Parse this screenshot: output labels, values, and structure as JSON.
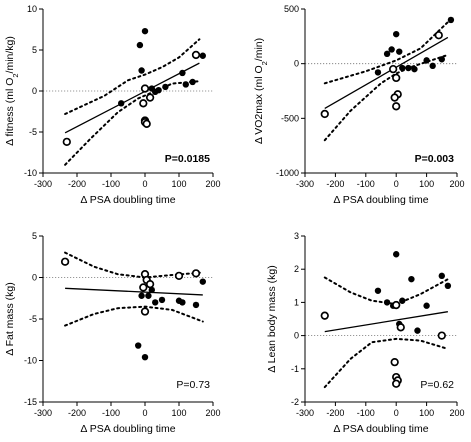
{
  "chart_data": [
    {
      "id": "fitness",
      "type": "scatter",
      "xlabel": "Δ PSA doubling time",
      "ylabel": "Δ fitness (ml O₂/min/kg)",
      "ylabel_parts": [
        "Δ fitness (ml O",
        "2",
        "/min/kg)"
      ],
      "xlim": [
        -300,
        200
      ],
      "ylim": [
        -10,
        10
      ],
      "xticks": [
        "-300",
        "-200",
        "-100",
        "0",
        "100",
        "200"
      ],
      "yticks": [
        "-10",
        "-5",
        "0",
        "5",
        "10"
      ],
      "annotation": "P=0.0185",
      "annotation_bold": true,
      "regression": [
        [
          -235,
          -5.1
        ],
        [
          160,
          3.4
        ]
      ],
      "ci_upper": [
        [
          -235,
          -2.8
        ],
        [
          -120,
          -0.6
        ],
        [
          -50,
          1.3
        ],
        [
          0,
          2.0
        ],
        [
          50,
          2.9
        ],
        [
          100,
          4.1
        ],
        [
          160,
          6.3
        ]
      ],
      "ci_lower": [
        [
          -235,
          -9.0
        ],
        [
          -160,
          -5.8
        ],
        [
          -80,
          -2.6
        ],
        [
          -20,
          -0.9
        ],
        [
          20,
          -0.2
        ],
        [
          80,
          0.9
        ],
        [
          160,
          1.2
        ]
      ],
      "points_filled": [
        [
          -15,
          5.6
        ],
        [
          0,
          7.3
        ],
        [
          -70,
          -1.5
        ],
        [
          -10,
          2.5
        ],
        [
          20,
          0.3
        ],
        [
          30,
          -0.1
        ],
        [
          40,
          0.1
        ],
        [
          60,
          0.5
        ],
        [
          110,
          2.2
        ],
        [
          120,
          0.8
        ],
        [
          140,
          1.1
        ],
        [
          150,
          4.4
        ],
        [
          170,
          4.3
        ]
      ],
      "points_open": [
        [
          -230,
          -6.2
        ],
        [
          0,
          0.3
        ],
        [
          -5,
          -1.5
        ],
        [
          0,
          -3.6
        ],
        [
          0,
          -3.8
        ],
        [
          5,
          -4.0
        ],
        [
          15,
          -0.8
        ],
        [
          150,
          4.4
        ]
      ]
    },
    {
      "id": "vo2max",
      "type": "scatter",
      "xlabel": "Δ PSA doubling time",
      "ylabel": "Δ VO2max (ml O₂/min)",
      "ylabel_parts": [
        "Δ VO2max (ml O",
        "2",
        "/min)"
      ],
      "xlim": [
        -300,
        200
      ],
      "ylim": [
        -1000,
        500
      ],
      "xticks": [
        "-300",
        "-200",
        "-100",
        "0",
        "100",
        "200"
      ],
      "yticks": [
        "-1000",
        "-500",
        "0",
        "500"
      ],
      "annotation": "P=0.003",
      "annotation_bold": true,
      "regression": [
        [
          -235,
          -410
        ],
        [
          170,
          240
        ]
      ],
      "ci_upper": [
        [
          -235,
          -180
        ],
        [
          -100,
          -70
        ],
        [
          0,
          30
        ],
        [
          80,
          140
        ],
        [
          170,
          380
        ]
      ],
      "ci_lower": [
        [
          -235,
          -700
        ],
        [
          -150,
          -430
        ],
        [
          -50,
          -180
        ],
        [
          0,
          -90
        ],
        [
          50,
          -30
        ],
        [
          170,
          80
        ]
      ],
      "points_filled": [
        [
          -60,
          -80
        ],
        [
          -30,
          90
        ],
        [
          -15,
          130
        ],
        [
          0,
          270
        ],
        [
          10,
          110
        ],
        [
          20,
          -40
        ],
        [
          40,
          -40
        ],
        [
          60,
          -50
        ],
        [
          100,
          30
        ],
        [
          120,
          -20
        ],
        [
          150,
          40
        ],
        [
          180,
          400
        ]
      ],
      "points_open": [
        [
          -235,
          -460
        ],
        [
          -10,
          -50
        ],
        [
          0,
          -130
        ],
        [
          5,
          -280
        ],
        [
          0,
          -390
        ],
        [
          -5,
          -310
        ],
        [
          140,
          260
        ]
      ]
    },
    {
      "id": "fatmass",
      "type": "scatter",
      "xlabel": "Δ PSA doubling time",
      "ylabel": "Δ Fat mass (kg)",
      "xlim": [
        -300,
        200
      ],
      "ylim": [
        -15,
        5
      ],
      "xticks": [
        "-300",
        "-200",
        "-100",
        "0",
        "100",
        "200"
      ],
      "yticks": [
        "-15",
        "-10",
        "-5",
        "0",
        "5"
      ],
      "annotation": "P=0.73",
      "annotation_bold": false,
      "regression": [
        [
          -235,
          -1.3
        ],
        [
          170,
          -2.1
        ]
      ],
      "ci_upper": [
        [
          -235,
          3.0
        ],
        [
          -150,
          1.3
        ],
        [
          -80,
          0.4
        ],
        [
          0,
          0.0
        ],
        [
          80,
          0.3
        ],
        [
          170,
          0.6
        ]
      ],
      "ci_lower": [
        [
          -235,
          -5.8
        ],
        [
          -150,
          -4.4
        ],
        [
          -80,
          -3.7
        ],
        [
          0,
          -3.5
        ],
        [
          80,
          -3.9
        ],
        [
          170,
          -5.3
        ]
      ],
      "points_filled": [
        [
          -20,
          -8.2
        ],
        [
          0,
          -9.6
        ],
        [
          -10,
          -2.2
        ],
        [
          10,
          -2.2
        ],
        [
          20,
          -1.5
        ],
        [
          30,
          -3.0
        ],
        [
          50,
          -2.7
        ],
        [
          100,
          -2.8
        ],
        [
          110,
          -3.0
        ],
        [
          150,
          -3.3
        ],
        [
          170,
          -0.5
        ]
      ],
      "points_open": [
        [
          -235,
          1.9
        ],
        [
          0,
          0.4
        ],
        [
          5,
          -0.3
        ],
        [
          -5,
          -1.2
        ],
        [
          15,
          -0.8
        ],
        [
          0,
          -4.1
        ],
        [
          100,
          0.2
        ],
        [
          150,
          0.5
        ]
      ]
    },
    {
      "id": "leanmass",
      "type": "scatter",
      "xlabel": "Δ PSA doubling time",
      "ylabel": "Δ Lean body mass (kg)",
      "xlim": [
        -300,
        200
      ],
      "ylim": [
        -2,
        3
      ],
      "xticks": [
        "-300",
        "-200",
        "-100",
        "0",
        "100",
        "200"
      ],
      "yticks": [
        "-2",
        "-1",
        "0",
        "1",
        "2",
        "3"
      ],
      "annotation": "P=0.62",
      "annotation_bold": false,
      "regression": [
        [
          -235,
          0.12
        ],
        [
          170,
          0.72
        ]
      ],
      "ci_upper": [
        [
          -235,
          1.75
        ],
        [
          -150,
          1.3
        ],
        [
          -80,
          1.05
        ],
        [
          0,
          0.95
        ],
        [
          80,
          1.25
        ],
        [
          170,
          1.7
        ]
      ],
      "ci_lower": [
        [
          -235,
          -1.55
        ],
        [
          -150,
          -0.7
        ],
        [
          -80,
          -0.2
        ],
        [
          0,
          -0.1
        ],
        [
          80,
          -0.15
        ],
        [
          170,
          -0.4
        ]
      ],
      "points_filled": [
        [
          -60,
          1.35
        ],
        [
          -30,
          1.0
        ],
        [
          -10,
          0.9
        ],
        [
          0,
          2.45
        ],
        [
          10,
          0.35
        ],
        [
          20,
          1.05
        ],
        [
          50,
          1.7
        ],
        [
          70,
          0.15
        ],
        [
          100,
          0.9
        ],
        [
          150,
          1.8
        ],
        [
          170,
          1.5
        ]
      ],
      "points_open": [
        [
          -235,
          0.6
        ],
        [
          0,
          0.92
        ],
        [
          15,
          0.25
        ],
        [
          -5,
          -0.8
        ],
        [
          0,
          -1.25
        ],
        [
          5,
          -1.35
        ],
        [
          0,
          -1.45
        ],
        [
          150,
          0.0
        ]
      ]
    }
  ]
}
